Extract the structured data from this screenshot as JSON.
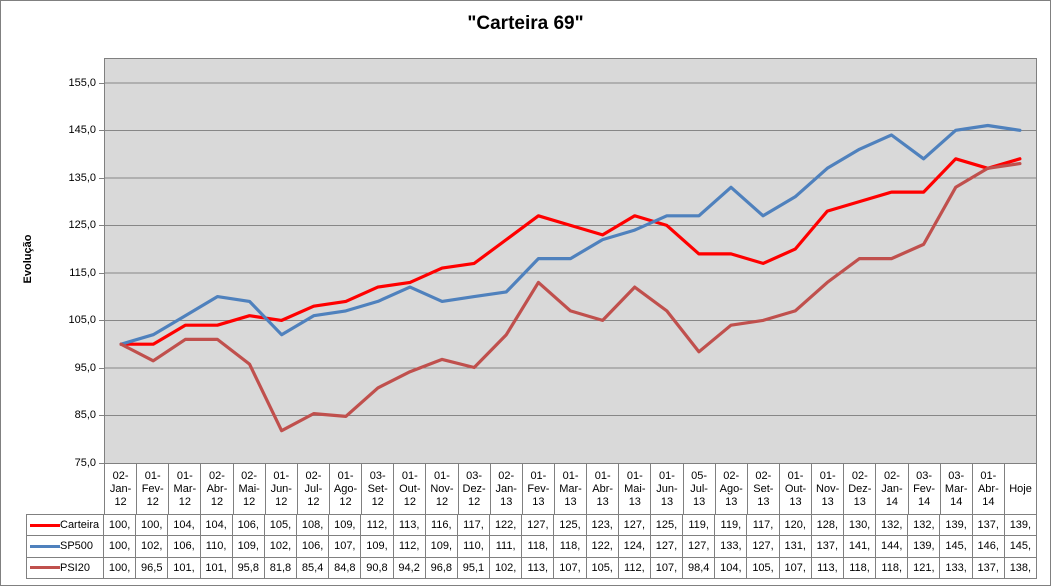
{
  "window": {
    "background": "#FFFFFF",
    "frame_border_color": "#808080"
  },
  "chart_data": {
    "type": "line",
    "title": "\"Carteira 69\"",
    "ylabel": "Evolução",
    "ylim": [
      75,
      160
    ],
    "ytick_step": 10,
    "grid": true,
    "legend_position": "data-table-left",
    "plot_bg": "#D9D9D9",
    "grid_color": "#878787",
    "axis_color": "#808080",
    "yticks": [
      {
        "label": "155,0",
        "value": 155
      },
      {
        "label": "145,0",
        "value": 145
      },
      {
        "label": "135,0",
        "value": 135
      },
      {
        "label": "125,0",
        "value": 125
      },
      {
        "label": "115,0",
        "value": 115
      },
      {
        "label": "105,0",
        "value": 105
      },
      {
        "label": "95,0",
        "value": 95
      },
      {
        "label": "85,0",
        "value": 85
      },
      {
        "label": "75,0",
        "value": 75
      }
    ],
    "categories": [
      "02-Jan-12",
      "01-Fev-12",
      "01-Mar-12",
      "02-Abr-12",
      "02-Mai-12",
      "01-Jun-12",
      "02-Jul-12",
      "01-Ago-12",
      "03-Set-12",
      "01-Out-12",
      "01-Nov-12",
      "03-Dez-12",
      "02-Jan-13",
      "01-Fev-13",
      "01-Mar-13",
      "01-Abr-13",
      "01-Mai-13",
      "01-Jun-13",
      "05-Jul-13",
      "02-Ago-13",
      "02-Set-13",
      "01-Out-13",
      "01-Nov-13",
      "02-Dez-13",
      "02-Jan-14",
      "03-Fev-14",
      "03-Mar-14",
      "01-Abr-14",
      "Hoje"
    ],
    "series": [
      {
        "name": "Carteira",
        "color": "#FF0000",
        "values": [
          100,
          100,
          104,
          104,
          106,
          105,
          108,
          109,
          112,
          113,
          116,
          117,
          122,
          127,
          125,
          123,
          127,
          125,
          119,
          119,
          117,
          120,
          128,
          130,
          132,
          132,
          139,
          137,
          139
        ],
        "display": [
          "100,",
          "100,",
          "104,",
          "104,",
          "106,",
          "105,",
          "108,",
          "109,",
          "112,",
          "113,",
          "116,",
          "117,",
          "122,",
          "127,",
          "125,",
          "123,",
          "127,",
          "125,",
          "119,",
          "119,",
          "117,",
          "120,",
          "128,",
          "130,",
          "132,",
          "132,",
          "139,",
          "137,",
          "139,"
        ]
      },
      {
        "name": "SP500",
        "color": "#4F81BD",
        "values": [
          100,
          102,
          106,
          110,
          109,
          102,
          106,
          107,
          109,
          112,
          109,
          110,
          111,
          118,
          118,
          122,
          124,
          127,
          127,
          133,
          127,
          131,
          137,
          141,
          144,
          139,
          145,
          146,
          145
        ],
        "display": [
          "100,",
          "102,",
          "106,",
          "110,",
          "109,",
          "102,",
          "106,",
          "107,",
          "109,",
          "112,",
          "109,",
          "110,",
          "111,",
          "118,",
          "118,",
          "122,",
          "124,",
          "127,",
          "127,",
          "133,",
          "127,",
          "131,",
          "137,",
          "141,",
          "144,",
          "139,",
          "145,",
          "146,",
          "145,"
        ]
      },
      {
        "name": "PSI20",
        "color": "#C0504D",
        "values": [
          100,
          96.5,
          101,
          101,
          95.8,
          81.8,
          85.4,
          84.8,
          90.8,
          94.2,
          96.8,
          95.1,
          102,
          113,
          107,
          105,
          112,
          107,
          98.4,
          104,
          105,
          107,
          113,
          118,
          118,
          121,
          133,
          137,
          138
        ],
        "display": [
          "100,",
          "96,5",
          "101,",
          "101,",
          "95,8",
          "81,8",
          "85,4",
          "84,8",
          "90,8",
          "94,2",
          "96,8",
          "95,1",
          "102,",
          "113,",
          "107,",
          "105,",
          "112,",
          "107,",
          "98,4",
          "104,",
          "105,",
          "107,",
          "113,",
          "118,",
          "118,",
          "121,",
          "133,",
          "137,",
          "138,"
        ]
      }
    ]
  }
}
